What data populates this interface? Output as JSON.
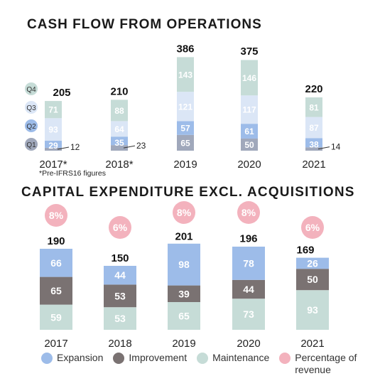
{
  "colors": {
    "q1": "#a0a8bb",
    "q2": "#9dbce9",
    "q3": "#dbe6f6",
    "q4": "#c6dcd7",
    "expansion": "#9dbce9",
    "improvement": "#7a7272",
    "maintenance": "#c6dcd7",
    "percentage": "#f3b2bd",
    "text": "#222222"
  },
  "chart_data": [
    {
      "type": "bar",
      "title": "CASH FLOW FROM OPERATIONS",
      "note": "*Pre-IFRS16 figures",
      "categories": [
        "2017*",
        "2018*",
        "2019",
        "2020",
        "2021"
      ],
      "quarter_legend": [
        "Q4",
        "Q3",
        "Q2",
        "Q1"
      ],
      "series": [
        {
          "name": "Q1",
          "values": [
            12,
            23,
            65,
            50,
            14
          ]
        },
        {
          "name": "Q2",
          "values": [
            29,
            35,
            57,
            61,
            38
          ]
        },
        {
          "name": "Q3",
          "values": [
            93,
            64,
            121,
            117,
            87
          ]
        },
        {
          "name": "Q4",
          "values": [
            71,
            88,
            143,
            146,
            81
          ]
        }
      ],
      "totals": [
        205,
        210,
        386,
        375,
        220
      ],
      "stacked": true,
      "legend": "left"
    },
    {
      "type": "bar",
      "title": "CAPITAL EXPENDITURE EXCL. ACQUISITIONS",
      "categories": [
        "2017",
        "2018",
        "2019",
        "2020",
        "2021"
      ],
      "series": [
        {
          "name": "Maintenance",
          "values": [
            59,
            53,
            65,
            73,
            93
          ]
        },
        {
          "name": "Improvement",
          "values": [
            65,
            53,
            39,
            44,
            50
          ]
        },
        {
          "name": "Expansion",
          "values": [
            66,
            44,
            98,
            78,
            26
          ]
        }
      ],
      "totals": [
        190,
        150,
        201,
        196,
        169
      ],
      "percentage_of_revenue": [
        "8%",
        "6%",
        "8%",
        "8%",
        "6%"
      ],
      "percentage_label": "Percentage of revenue",
      "stacked": true,
      "legend": "bottom"
    }
  ]
}
